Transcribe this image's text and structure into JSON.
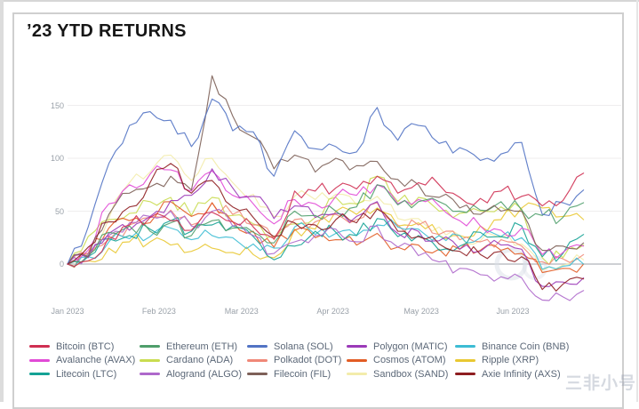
{
  "page": {
    "title": "’23 YTD RETURNS",
    "watermark": "三非小号"
  },
  "chart_data": {
    "type": "line",
    "title": "’23 YTD RETURNS",
    "xlabel": "",
    "ylabel": "",
    "legend_position": "bottom",
    "grid": "horizontal-light",
    "y_ticks": [
      0,
      50,
      100,
      150
    ],
    "ylim": [
      -40,
      190
    ],
    "x_tick_labels": [
      "Jan 2023",
      "Feb 2023",
      "Mar 2023",
      "Apr 2023",
      "May 2023",
      "Jun 2023"
    ],
    "month_start_days": [
      0,
      31,
      59,
      90,
      120,
      151
    ],
    "x_days": [
      0,
      7,
      14,
      21,
      28,
      35,
      42,
      49,
      56,
      63,
      70,
      77,
      84,
      91,
      98,
      105,
      112,
      119,
      126,
      133,
      140,
      147,
      154,
      161,
      168,
      175
    ],
    "series": [
      {
        "name": "Bitcoin (BTC)",
        "color": "#cf2f52",
        "values": [
          0,
          3,
          26,
          37,
          44,
          41,
          32,
          49,
          40,
          35,
          24,
          69,
          69,
          72,
          71,
          83,
          67,
          77,
          75,
          63,
          62,
          69,
          64,
          55,
          60,
          86
        ]
      },
      {
        "name": "Ethereum (ETH)",
        "color": "#4f9e6b",
        "values": [
          0,
          8,
          30,
          36,
          31,
          39,
          27,
          41,
          34,
          30,
          20,
          50,
          46,
          50,
          54,
          75,
          56,
          59,
          59,
          50,
          51,
          59,
          51,
          46,
          44,
          58
        ]
      },
      {
        "name": "Solana (SOL)",
        "color": "#5273c4",
        "values": [
          0,
          35,
          95,
          131,
          144,
          136,
          111,
          156,
          126,
          125,
          83,
          126,
          109,
          111,
          106,
          148,
          117,
          131,
          114,
          110,
          98,
          104,
          115,
          47,
          58,
          70
        ]
      },
      {
        "name": "Polygon (MATIC)",
        "color": "#9b3ab8",
        "values": [
          0,
          6,
          29,
          32,
          45,
          60,
          65,
          90,
          72,
          64,
          43,
          55,
          44,
          48,
          45,
          59,
          29,
          31,
          22,
          14,
          12,
          18,
          14,
          -21,
          -17,
          -13
        ]
      },
      {
        "name": "Binance Coin (BNB)",
        "color": "#3dbcd4",
        "values": [
          0,
          7,
          21,
          24,
          26,
          34,
          23,
          27,
          25,
          19,
          15,
          35,
          28,
          29,
          27,
          37,
          35,
          33,
          27,
          27,
          25,
          26,
          25,
          -5,
          -2,
          0
        ]
      },
      {
        "name": "Avalanche (AVAX)",
        "color": "#e14ad6",
        "values": [
          0,
          13,
          57,
          75,
          85,
          89,
          69,
          88,
          65,
          57,
          38,
          61,
          57,
          64,
          65,
          75,
          57,
          61,
          55,
          41,
          36,
          32,
          34,
          9,
          11,
          17
        ]
      },
      {
        "name": "Cardano (ADA)",
        "color": "#c9dc50",
        "values": [
          0,
          26,
          42,
          48,
          59,
          63,
          46,
          63,
          46,
          38,
          26,
          38,
          44,
          63,
          57,
          83,
          59,
          63,
          50,
          48,
          50,
          54,
          52,
          6,
          6,
          18
        ]
      },
      {
        "name": "Polkadot (DOT)",
        "color": "#f08878",
        "values": [
          0,
          7,
          23,
          37,
          44,
          51,
          37,
          58,
          47,
          37,
          23,
          42,
          40,
          47,
          42,
          58,
          37,
          37,
          28,
          23,
          21,
          23,
          17,
          2,
          5,
          9
        ]
      },
      {
        "name": "Cosmos (ATOM)",
        "color": "#e25c24",
        "values": [
          0,
          10,
          34,
          41,
          39,
          59,
          45,
          58,
          40,
          31,
          16,
          32,
          25,
          23,
          18,
          29,
          16,
          18,
          14,
          14,
          13,
          13,
          10,
          -8,
          -4,
          0
        ]
      },
      {
        "name": "Ripple (XRP)",
        "color": "#e9c832",
        "values": [
          0,
          3,
          15,
          21,
          21,
          18,
          12,
          15,
          11,
          9,
          6,
          33,
          33,
          50,
          47,
          53,
          36,
          39,
          27,
          27,
          36,
          42,
          53,
          53,
          45,
          42
        ]
      },
      {
        "name": "Litecoin (LTC)",
        "color": "#14a295",
        "values": [
          0,
          7,
          24,
          27,
          33,
          41,
          31,
          37,
          36,
          26,
          4,
          17,
          31,
          30,
          27,
          43,
          26,
          27,
          13,
          17,
          30,
          26,
          36,
          7,
          10,
          28
        ]
      },
      {
        "name": "Alogrand (ALGO)",
        "color": "#ae68cb",
        "values": [
          0,
          10,
          27,
          39,
          45,
          50,
          36,
          50,
          36,
          27,
          10,
          21,
          27,
          33,
          21,
          36,
          16,
          8,
          2,
          -4,
          -10,
          -12,
          -13,
          -34,
          -31,
          -25
        ]
      },
      {
        "name": "Filecoin (FIL)",
        "color": "#7d6058",
        "values": [
          0,
          7,
          47,
          67,
          73,
          83,
          70,
          178,
          140,
          120,
          90,
          103,
          87,
          100,
          93,
          97,
          80,
          75,
          63,
          53,
          47,
          50,
          50,
          13,
          17,
          20
        ]
      },
      {
        "name": "Sandbox (SAND)",
        "color": "#f3ecab",
        "values": [
          0,
          9,
          43,
          77,
          87,
          103,
          79,
          100,
          77,
          66,
          45,
          64,
          61,
          66,
          56,
          64,
          43,
          43,
          35,
          27,
          22,
          25,
          19,
          -6,
          -1,
          4
        ]
      },
      {
        "name": "Axie Infinity (AXS)",
        "color": "#8e1d20",
        "values": [
          0,
          16,
          40,
          54,
          77,
          95,
          67,
          79,
          54,
          44,
          26,
          39,
          37,
          42,
          39,
          52,
          31,
          26,
          19,
          12,
          9,
          12,
          7,
          -24,
          -19,
          -14
        ]
      }
    ]
  }
}
